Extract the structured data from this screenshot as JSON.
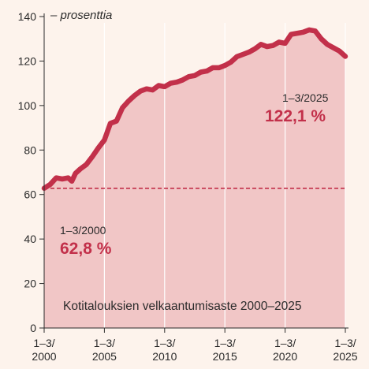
{
  "chart_data": {
    "type": "area",
    "y_unit_label": "– prosenttia",
    "title": "Kotitalouksien velkaantumisaste 2000–2025",
    "ylim": [
      0,
      140
    ],
    "y_ticks": [
      "0",
      "20",
      "40",
      "60",
      "80",
      "100",
      "120",
      "140"
    ],
    "y_tick_values": [
      0,
      20,
      40,
      60,
      80,
      100,
      120,
      140
    ],
    "x_range": [
      2000,
      2025
    ],
    "x_ticks": [
      {
        "year": 2000,
        "line1": "1–3/",
        "line2": "2000"
      },
      {
        "year": 2005,
        "line1": "1–3/",
        "line2": "2005"
      },
      {
        "year": 2010,
        "line1": "1–3/",
        "line2": "2010"
      },
      {
        "year": 2015,
        "line1": "1–3/",
        "line2": "2015"
      },
      {
        "year": 2020,
        "line1": "1–3/",
        "line2": "2020"
      },
      {
        "year": 2025,
        "line1": "1–3/",
        "line2": "2025"
      }
    ],
    "grid": "vertical",
    "reference_line": {
      "value": 62.8,
      "style": "dashed"
    },
    "x": [
      2000.0,
      2000.5,
      2001.0,
      2001.5,
      2002.0,
      2002.3,
      2002.6,
      2003.0,
      2003.5,
      2004.0,
      2004.5,
      2005.0,
      2005.5,
      2006.0,
      2006.5,
      2007.0,
      2007.5,
      2008.0,
      2008.5,
      2009.0,
      2009.5,
      2010.0,
      2010.5,
      2011.0,
      2011.5,
      2012.0,
      2012.5,
      2013.0,
      2013.5,
      2014.0,
      2014.5,
      2015.0,
      2015.5,
      2016.0,
      2016.5,
      2017.0,
      2017.5,
      2018.0,
      2018.5,
      2019.0,
      2019.5,
      2020.0,
      2020.5,
      2021.0,
      2021.5,
      2022.0,
      2022.5,
      2023.0,
      2023.5,
      2024.0,
      2024.5,
      2025.0
    ],
    "series": [
      {
        "values": [
          62.8,
          64.5,
          67.5,
          67.0,
          67.5,
          66.0,
          69.5,
          71.5,
          73.5,
          77.0,
          81.0,
          84.5,
          92.0,
          93.0,
          99.0,
          102.0,
          104.5,
          106.5,
          107.5,
          107.0,
          109.0,
          108.5,
          110.0,
          110.5,
          111.5,
          113.0,
          113.5,
          115.0,
          115.5,
          117.0,
          117.0,
          118.0,
          119.5,
          122.0,
          123.0,
          124.0,
          125.5,
          127.5,
          126.5,
          127.0,
          128.5,
          128.0,
          132.0,
          132.5,
          133.0,
          134.0,
          133.5,
          130.0,
          127.5,
          126.0,
          124.5,
          122.1
        ]
      }
    ],
    "annotations": [
      {
        "period": "1–3/2000",
        "value_label": "62,8 %"
      },
      {
        "period": "1–3/2025",
        "value_label": "122,1 %"
      }
    ]
  },
  "colors": {
    "background": "#fdf3ec",
    "area_fill": "#f1c6c6",
    "line": "#c2304a",
    "grid": "#ffffff",
    "axis": "#2b2b2b"
  }
}
